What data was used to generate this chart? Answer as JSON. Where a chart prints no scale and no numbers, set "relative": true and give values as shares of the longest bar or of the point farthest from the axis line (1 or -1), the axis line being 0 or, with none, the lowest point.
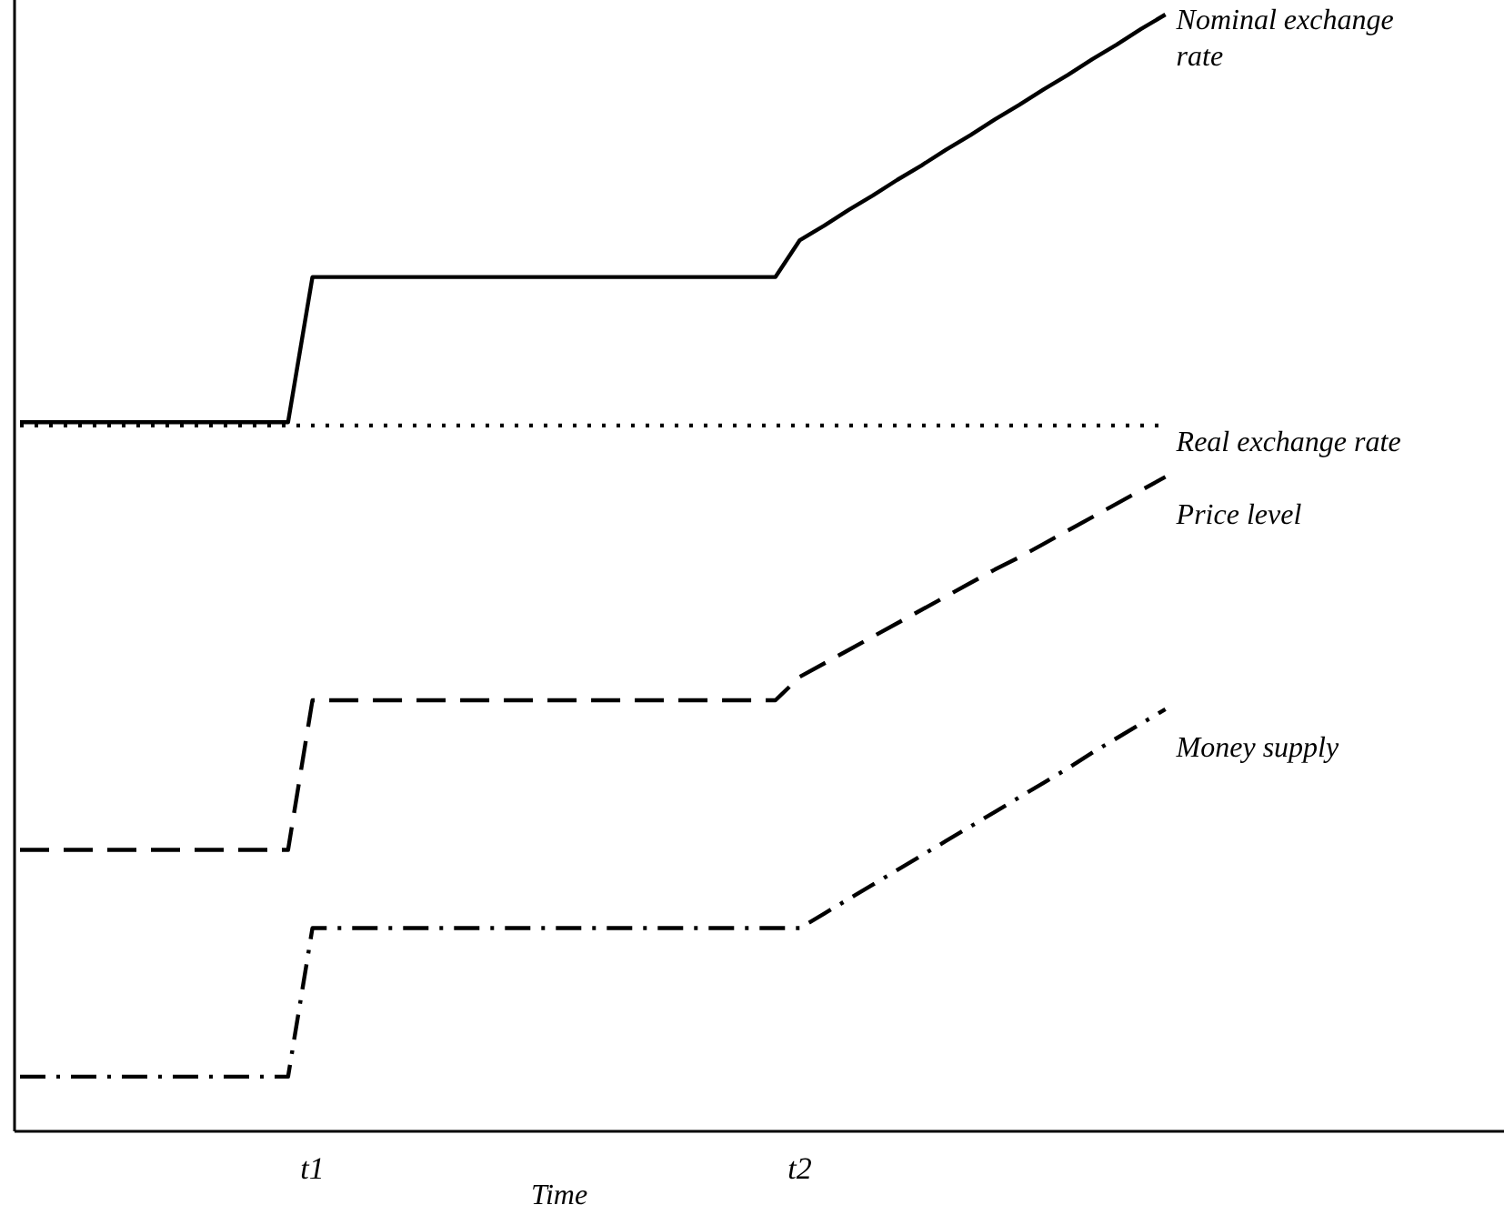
{
  "chart_data": {
    "type": "line",
    "relative": true,
    "xlabel": "Time",
    "tick_labels": "x",
    "marker": "none",
    "categories": [
      null,
      null,
      null,
      null,
      null,
      null,
      null,
      null,
      null,
      null,
      null,
      null,
      "t1",
      null,
      null,
      null,
      null,
      null,
      null,
      null,
      null,
      null,
      null,
      null,
      null,
      null,
      null,
      null,
      null,
      null,
      null,
      null,
      "t2",
      null,
      null,
      null,
      null,
      null,
      null,
      null,
      null,
      null,
      null,
      null,
      null,
      null,
      null,
      null,
      null,
      null,
      null,
      null,
      null,
      null,
      null,
      null,
      null,
      null,
      null,
      null,
      null,
      null
    ],
    "series": [
      {
        "name": "Nominal exchange rate",
        "color": "#000000",
        "line_style": "solid",
        "values": [
          0.635,
          0.635,
          0.635,
          0.635,
          0.635,
          0.635,
          0.635,
          0.635,
          0.635,
          0.635,
          0.635,
          0.635,
          0.765,
          0.765,
          0.765,
          0.765,
          0.765,
          0.765,
          0.765,
          0.765,
          0.765,
          0.765,
          0.765,
          0.765,
          0.765,
          0.765,
          0.765,
          0.765,
          0.765,
          0.765,
          0.765,
          0.765,
          0.798,
          0.811,
          0.825,
          0.838,
          0.852,
          0.865,
          0.879,
          0.892,
          0.906,
          0.919,
          0.933,
          0.946,
          0.96,
          0.973,
          0.987,
          1,
          null,
          null,
          null,
          null,
          null,
          null,
          null,
          null,
          null,
          null,
          null,
          null,
          null,
          null
        ]
      },
      {
        "name": "Real exchange rate",
        "color": "#000000",
        "line_style": "dotted",
        "values": [
          0.632,
          0.632,
          0.632,
          0.632,
          0.632,
          0.632,
          0.632,
          0.632,
          0.632,
          0.632,
          0.632,
          0.632,
          0.632,
          0.632,
          0.632,
          0.632,
          0.632,
          0.632,
          0.632,
          0.632,
          0.632,
          0.632,
          0.632,
          0.632,
          0.632,
          0.632,
          0.632,
          0.632,
          0.632,
          0.632,
          0.632,
          0.632,
          0.632,
          0.632,
          0.632,
          0.632,
          0.632,
          0.632,
          0.632,
          0.632,
          0.632,
          0.632,
          0.632,
          0.632,
          0.632,
          0.632,
          0.632,
          0.632,
          null,
          null,
          null,
          null,
          null,
          null,
          null,
          null,
          null,
          null,
          null,
          null,
          null,
          null
        ]
      },
      {
        "name": "Price level",
        "color": "#000000",
        "line_style": "dashed",
        "values": [
          0.252,
          0.252,
          0.252,
          0.252,
          0.252,
          0.252,
          0.252,
          0.252,
          0.252,
          0.252,
          0.252,
          0.252,
          0.386,
          0.386,
          0.386,
          0.386,
          0.386,
          0.386,
          0.386,
          0.386,
          0.386,
          0.386,
          0.386,
          0.386,
          0.386,
          0.386,
          0.386,
          0.386,
          0.386,
          0.386,
          0.386,
          0.386,
          0.407,
          0.419,
          0.431,
          0.443,
          0.455,
          0.467,
          0.479,
          0.491,
          0.503,
          0.514,
          0.526,
          0.538,
          0.55,
          0.562,
          0.574,
          0.586,
          null,
          null,
          null,
          null,
          null,
          null,
          null,
          null,
          null,
          null,
          null,
          null,
          null,
          null
        ]
      },
      {
        "name": "Money supply",
        "color": "#000000",
        "line_style": "dashdot",
        "values": [
          0.049,
          0.049,
          0.049,
          0.049,
          0.049,
          0.049,
          0.049,
          0.049,
          0.049,
          0.049,
          0.049,
          0.049,
          0.182,
          0.182,
          0.182,
          0.182,
          0.182,
          0.182,
          0.182,
          0.182,
          0.182,
          0.182,
          0.182,
          0.182,
          0.182,
          0.182,
          0.182,
          0.182,
          0.182,
          0.182,
          0.182,
          0.182,
          0.182,
          0.195,
          0.208,
          0.221,
          0.234,
          0.247,
          0.26,
          0.273,
          0.286,
          0.299,
          0.312,
          0.325,
          0.339,
          0.352,
          0.365,
          0.378,
          null,
          null,
          null,
          null,
          null,
          null,
          null,
          null,
          null,
          null,
          null,
          null,
          null,
          null
        ]
      }
    ]
  }
}
